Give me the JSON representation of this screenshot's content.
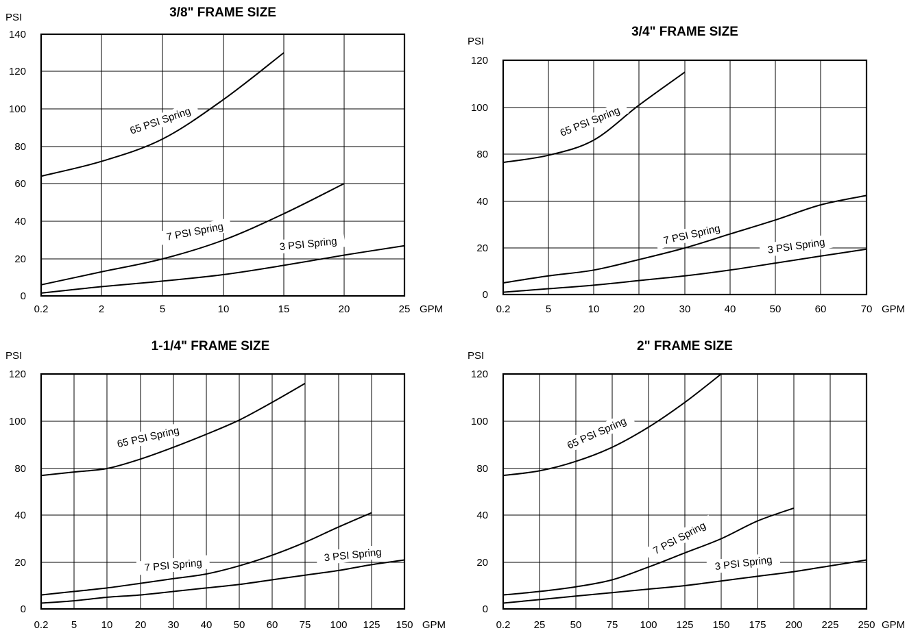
{
  "chart_data": [
    {
      "type": "line",
      "title": "3/8\" FRAME SIZE",
      "ylabel": "PSI",
      "xlabel": "GPM",
      "x_ticks": [
        "0.2",
        "2",
        "5",
        "10",
        "15",
        "20",
        "25"
      ],
      "y_ticks": [
        "0",
        "20",
        "40",
        "60",
        "80",
        "100",
        "120",
        "140"
      ],
      "y_tick_values": [
        0,
        20,
        40,
        60,
        80,
        100,
        120,
        140
      ],
      "ylim": [
        0,
        140
      ],
      "grid": true,
      "series": [
        {
          "name": "65 PSI Spring",
          "x": [
            "0.2",
            "2",
            "5",
            "10",
            "15"
          ],
          "y": [
            64,
            72,
            84,
            105,
            130
          ]
        },
        {
          "name": "7 PSI Spring",
          "x": [
            "0.2",
            "2",
            "5",
            "10",
            "15",
            "20"
          ],
          "y": [
            6,
            13,
            20,
            30,
            44,
            60
          ]
        },
        {
          "name": "3 PSI Spring",
          "x": [
            "0.2",
            "2",
            "5",
            "10",
            "15",
            "20",
            "25"
          ],
          "y": [
            1.5,
            5,
            8,
            11.5,
            16.5,
            22,
            27
          ]
        }
      ]
    },
    {
      "type": "line",
      "title": "3/4\" FRAME SIZE",
      "ylabel": "PSI",
      "xlabel": "GPM",
      "x_ticks": [
        "0.2",
        "5",
        "10",
        "20",
        "30",
        "40",
        "50",
        "60",
        "70"
      ],
      "y_ticks": [
        "0",
        "20",
        "40",
        "80",
        "100",
        "120"
      ],
      "y_tick_values": [
        0,
        20,
        40,
        80,
        100,
        120
      ],
      "grid": true,
      "series": [
        {
          "name": "65 PSI Spring",
          "x": [
            "0.2",
            "5",
            "10",
            "20",
            "30"
          ],
          "y": [
            73,
            79,
            86,
            101,
            115
          ]
        },
        {
          "name": "7 PSI Spring",
          "x": [
            "0.2",
            "5",
            "10",
            "20",
            "30",
            "40",
            "50",
            "60",
            "70"
          ],
          "y": [
            5,
            8,
            10.5,
            15,
            20,
            26,
            32,
            38.5,
            45
          ]
        },
        {
          "name": "3 PSI Spring",
          "x": [
            "0.2",
            "5",
            "10",
            "20",
            "30",
            "40",
            "50",
            "60",
            "70"
          ],
          "y": [
            1,
            2.5,
            4,
            6,
            8,
            10.5,
            13.5,
            16.5,
            19.5
          ]
        }
      ]
    },
    {
      "type": "line",
      "title": "1-1/4\" FRAME SIZE",
      "ylabel": "PSI",
      "xlabel": "GPM",
      "x_ticks": [
        "0.2",
        "5",
        "10",
        "20",
        "30",
        "40",
        "50",
        "60",
        "75",
        "100",
        "125",
        "150"
      ],
      "y_ticks": [
        "0",
        "20",
        "40",
        "80",
        "100",
        "120"
      ],
      "y_tick_values": [
        0,
        20,
        40,
        80,
        100,
        120
      ],
      "grid": true,
      "series": [
        {
          "name": "65 PSI Spring",
          "x": [
            "0.2",
            "5",
            "10",
            "20",
            "30",
            "40",
            "50",
            "60",
            "75"
          ],
          "y": [
            74,
            77,
            80,
            84,
            89,
            94.5,
            100.5,
            108,
            116
          ]
        },
        {
          "name": "7 PSI Spring",
          "x": [
            "0.2",
            "5",
            "10",
            "20",
            "30",
            "40",
            "50",
            "60",
            "75",
            "100",
            "125"
          ],
          "y": [
            6,
            7.5,
            9,
            11,
            13,
            15,
            18.5,
            23,
            28.5,
            35,
            42
          ]
        },
        {
          "name": "3 PSI Spring",
          "x": [
            "0.2",
            "5",
            "10",
            "20",
            "30",
            "40",
            "50",
            "60",
            "75",
            "100",
            "125",
            "150"
          ],
          "y": [
            2.5,
            3.5,
            5,
            6,
            7.5,
            9,
            10.5,
            12.5,
            14.5,
            16.5,
            19,
            21
          ]
        }
      ]
    },
    {
      "type": "line",
      "title": "2\" FRAME SIZE",
      "ylabel": "PSI",
      "xlabel": "GPM",
      "x_ticks": [
        "0.2",
        "25",
        "50",
        "75",
        "100",
        "125",
        "150",
        "175",
        "200",
        "225",
        "250"
      ],
      "y_ticks": [
        "0",
        "20",
        "40",
        "80",
        "100",
        "120"
      ],
      "y_tick_values": [
        0,
        20,
        40,
        80,
        100,
        120
      ],
      "grid": true,
      "series": [
        {
          "name": "65 PSI Spring",
          "x": [
            "0.2",
            "25",
            "50",
            "75",
            "100",
            "125",
            "150"
          ],
          "y": [
            74,
            78,
            83,
            89,
            97.5,
            108,
            120
          ]
        },
        {
          "name": "7 PSI Spring",
          "x": [
            "0.2",
            "25",
            "50",
            "75",
            "100",
            "125",
            "150",
            "175",
            "200"
          ],
          "y": [
            6,
            7.5,
            9.5,
            12.5,
            18,
            24,
            30,
            37.5,
            46
          ]
        },
        {
          "name": "3 PSI Spring",
          "x": [
            "0.2",
            "25",
            "50",
            "75",
            "100",
            "125",
            "150",
            "175",
            "200",
            "225",
            "250"
          ],
          "y": [
            2.5,
            4,
            5.5,
            7,
            8.5,
            10,
            12,
            14,
            16,
            18.5,
            21
          ]
        }
      ]
    }
  ]
}
